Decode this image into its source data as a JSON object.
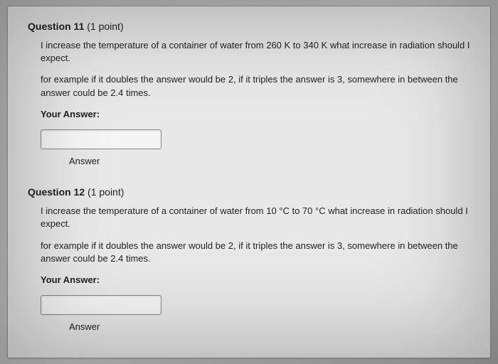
{
  "q11": {
    "title_prefix": "Question 11",
    "points": "(1 point)",
    "para1": "I increase the temperature of a container of water from 260 K to 340 K what increase in radiation should I expect.",
    "para2": "for example if it doubles the answer would be 2, if it triples the answer is 3, somewhere in between the answer could be 2.4 times.",
    "your_answer": "Your Answer:",
    "answer_label": "Answer"
  },
  "q12": {
    "title_prefix": "Question 12",
    "points": "(1 point)",
    "para1": "I increase the temperature of a container of water from 10 °C to 70 °C what increase in radiation should I expect.",
    "para2": "for example if it doubles the answer would be 2, if it triples the answer is 3, somewhere in between the answer could be 2.4 times.",
    "your_answer": "Your Answer:",
    "answer_label": "Answer"
  }
}
